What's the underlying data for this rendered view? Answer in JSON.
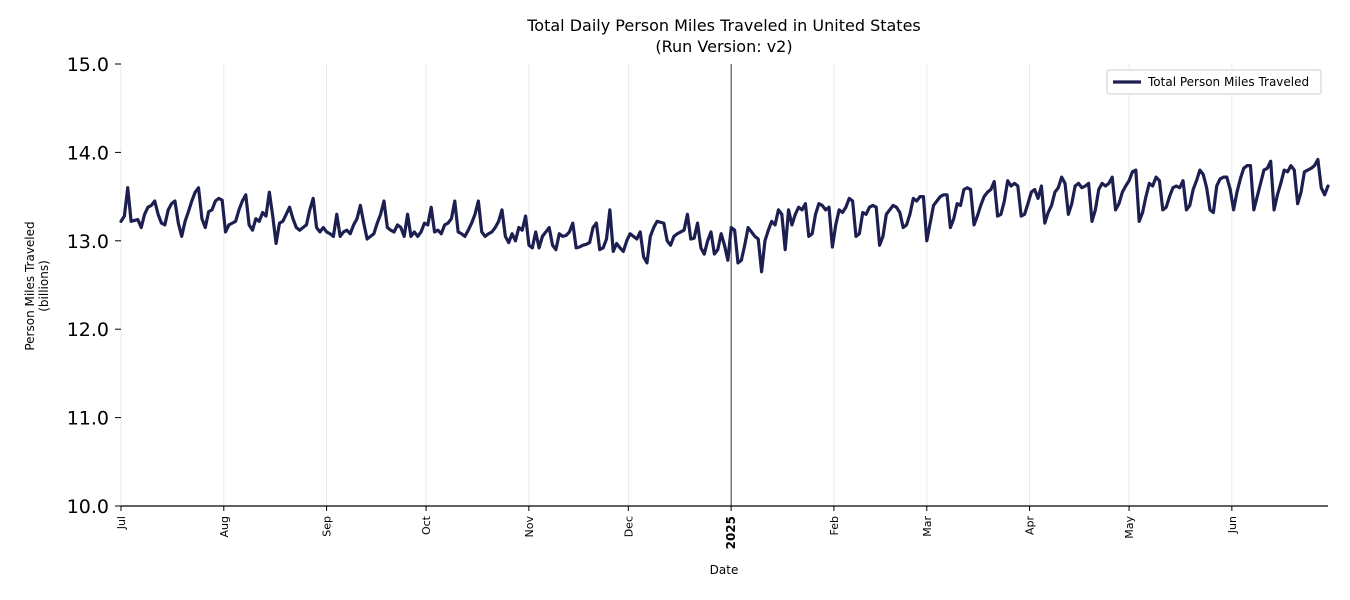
{
  "chart_data": {
    "type": "line",
    "title": "Total Daily Person Miles Traveled in United States",
    "subtitle": "(Run Version: v2)",
    "xlabel": "Date",
    "ylabel": "Person Miles Traveled",
    "ylabel_unit": "(billions)",
    "ylim": [
      10.0,
      15.0
    ],
    "y_ticks": [
      "10.0",
      "11.0",
      "12.0",
      "13.0",
      "14.0",
      "15.0"
    ],
    "x_range_days": [
      0,
      364
    ],
    "x_ticks": [
      {
        "label": "Jul",
        "day": 0,
        "bold": false
      },
      {
        "label": "Aug",
        "day": 31,
        "bold": false
      },
      {
        "label": "Sep",
        "day": 62,
        "bold": false
      },
      {
        "label": "Oct",
        "day": 92,
        "bold": false
      },
      {
        "label": "Nov",
        "day": 123,
        "bold": false
      },
      {
        "label": "Dec",
        "day": 153,
        "bold": false
      },
      {
        "label": "2025",
        "day": 184,
        "bold": true
      },
      {
        "label": "Feb",
        "day": 215,
        "bold": false
      },
      {
        "label": "Mar",
        "day": 243,
        "bold": false
      },
      {
        "label": "Apr",
        "day": 274,
        "bold": false
      },
      {
        "label": "May",
        "day": 304,
        "bold": false
      },
      {
        "label": "Jun",
        "day": 335,
        "bold": false
      }
    ],
    "year_marker_day": 184,
    "series": [
      {
        "name": "Total Person Miles Traveled",
        "color": "#1c1f4f",
        "x_start": "2024-07-01",
        "values": [
          13.22,
          13.28,
          13.6,
          13.22,
          13.23,
          13.24,
          13.15,
          13.3,
          13.38,
          13.4,
          13.45,
          13.3,
          13.2,
          13.18,
          13.35,
          13.42,
          13.45,
          13.2,
          13.05,
          13.22,
          13.33,
          13.45,
          13.55,
          13.6,
          13.25,
          13.15,
          13.33,
          13.35,
          13.45,
          13.48,
          13.46,
          13.1,
          13.18,
          13.2,
          13.22,
          13.35,
          13.45,
          13.52,
          13.18,
          13.12,
          13.25,
          13.22,
          13.32,
          13.28,
          13.55,
          13.28,
          12.97,
          13.2,
          13.22,
          13.3,
          13.38,
          13.25,
          13.15,
          13.12,
          13.15,
          13.18,
          13.35,
          13.48,
          13.15,
          13.1,
          13.15,
          13.1,
          13.08,
          13.05,
          13.3,
          13.05,
          13.1,
          13.12,
          13.08,
          13.18,
          13.25,
          13.4,
          13.2,
          13.02,
          13.05,
          13.08,
          13.2,
          13.3,
          13.45,
          13.15,
          13.12,
          13.1,
          13.18,
          13.15,
          13.05,
          13.3,
          13.05,
          13.1,
          13.05,
          13.1,
          13.2,
          13.18,
          13.38,
          13.1,
          13.12,
          13.08,
          13.18,
          13.2,
          13.25,
          13.45,
          13.1,
          13.08,
          13.05,
          13.12,
          13.2,
          13.3,
          13.45,
          13.1,
          13.05,
          13.08,
          13.1,
          13.15,
          13.22,
          13.35,
          13.05,
          12.98,
          13.08,
          13.0,
          13.15,
          13.12,
          13.28,
          12.95,
          12.92,
          13.1,
          12.92,
          13.05,
          13.1,
          13.15,
          12.95,
          12.9,
          13.08,
          13.05,
          13.06,
          13.1,
          13.2,
          12.92,
          12.93,
          12.95,
          12.96,
          12.98,
          13.15,
          13.2,
          12.9,
          12.92,
          13.02,
          13.35,
          12.88,
          12.97,
          12.92,
          12.88,
          13.0,
          13.08,
          13.05,
          13.02,
          13.1,
          12.82,
          12.75,
          13.05,
          13.15,
          13.22,
          13.21,
          13.2,
          13.0,
          12.95,
          13.05,
          13.08,
          13.1,
          13.12,
          13.3,
          13.02,
          13.03,
          13.2,
          12.92,
          12.85,
          13.0,
          13.1,
          12.85,
          12.9,
          13.08,
          12.95,
          12.78,
          13.15,
          13.12,
          12.75,
          12.78,
          12.95,
          13.15,
          13.1,
          13.05,
          13.02,
          12.65,
          13.0,
          13.12,
          13.22,
          13.18,
          13.35,
          13.3,
          12.9,
          13.35,
          13.18,
          13.3,
          13.38,
          13.35,
          13.42,
          13.05,
          13.08,
          13.3,
          13.42,
          13.4,
          13.35,
          13.38,
          12.93,
          13.18,
          13.35,
          13.32,
          13.38,
          13.48,
          13.45,
          13.05,
          13.08,
          13.32,
          13.3,
          13.38,
          13.4,
          13.38,
          12.95,
          13.05,
          13.3,
          13.35,
          13.4,
          13.38,
          13.32,
          13.15,
          13.18,
          13.3,
          13.48,
          13.45,
          13.5,
          13.5,
          13.0,
          13.2,
          13.4,
          13.45,
          13.5,
          13.52,
          13.52,
          13.15,
          13.25,
          13.42,
          13.4,
          13.58,
          13.6,
          13.58,
          13.18,
          13.28,
          13.4,
          13.5,
          13.55,
          13.58,
          13.67,
          13.28,
          13.3,
          13.45,
          13.68,
          13.62,
          13.65,
          13.62,
          13.28,
          13.3,
          13.42,
          13.55,
          13.58,
          13.48,
          13.62,
          13.2,
          13.32,
          13.4,
          13.55,
          13.6,
          13.72,
          13.65,
          13.3,
          13.42,
          13.62,
          13.65,
          13.6,
          13.62,
          13.65,
          13.22,
          13.35,
          13.58,
          13.65,
          13.62,
          13.65,
          13.72,
          13.35,
          13.42,
          13.55,
          13.62,
          13.68,
          13.78,
          13.8,
          13.22,
          13.32,
          13.5,
          13.65,
          13.62,
          13.72,
          13.68,
          13.35,
          13.38,
          13.5,
          13.6,
          13.62,
          13.6,
          13.68,
          13.35,
          13.4,
          13.58,
          13.68,
          13.8,
          13.75,
          13.6,
          13.35,
          13.32,
          13.62,
          13.7,
          13.72,
          13.72,
          13.58,
          13.35,
          13.55,
          13.7,
          13.82,
          13.85,
          13.85,
          13.35,
          13.5,
          13.65,
          13.8,
          13.82,
          13.9,
          13.35,
          13.52,
          13.65,
          13.8,
          13.78,
          13.85,
          13.8,
          13.42,
          13.55,
          13.78,
          13.8,
          13.82,
          13.85,
          13.92,
          13.6,
          13.52,
          13.62
        ]
      }
    ],
    "legend": {
      "position": "top-right",
      "label": "Total Person Miles Traveled"
    }
  }
}
